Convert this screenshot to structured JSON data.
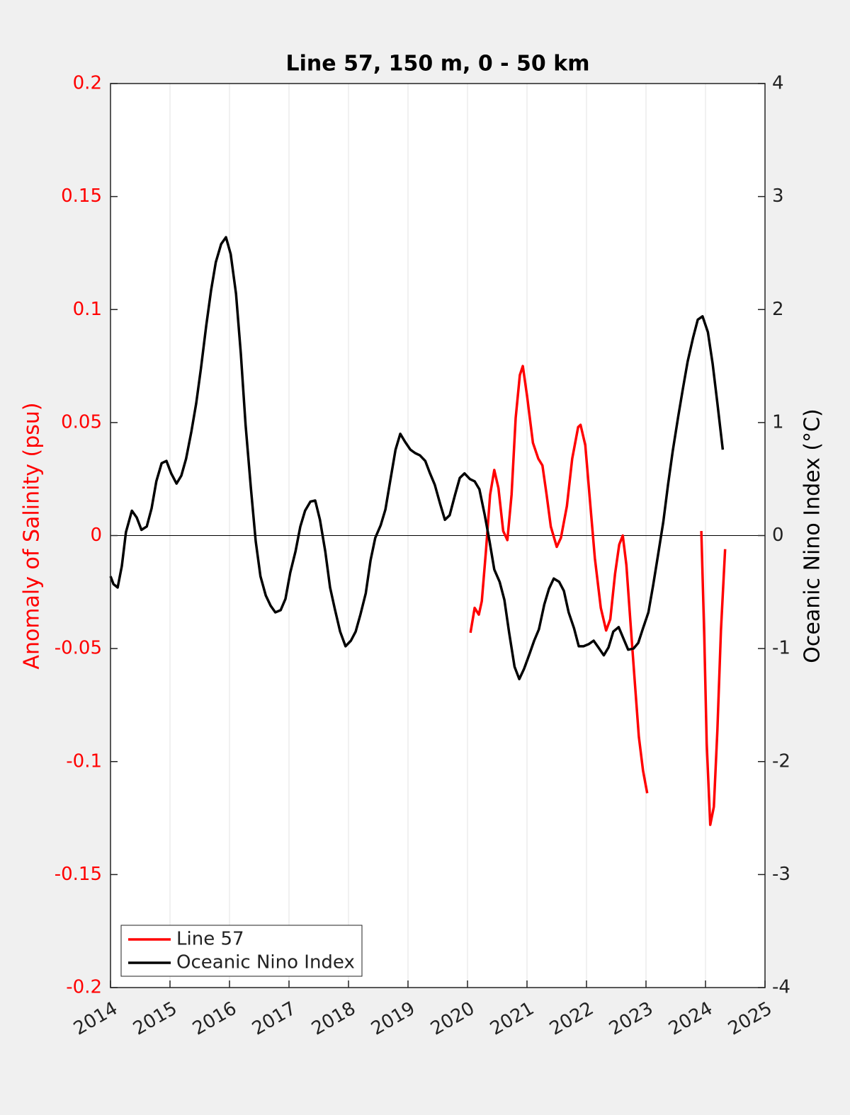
{
  "chart_data": {
    "type": "line",
    "title": "Line 57, 150 m, 0 - 50 km",
    "ylabel": "Anomaly of Salinity (psu)",
    "y2label": "Oceanic Nino Index (°C)",
    "xlim": [
      2014,
      2025
    ],
    "xticks": [
      2014,
      2015,
      2016,
      2017,
      2018,
      2019,
      2020,
      2021,
      2022,
      2023,
      2024,
      2025
    ],
    "ylim": [
      -0.2,
      0.2
    ],
    "yticks": [
      -0.2,
      -0.15,
      -0.1,
      -0.05,
      0,
      0.05,
      0.1,
      0.15,
      0.2
    ],
    "y2lim": [
      -4,
      4
    ],
    "y2ticks": [
      -4,
      -3,
      -2,
      -1,
      0,
      1,
      2,
      3,
      4
    ],
    "xgrid": true,
    "reference_line": 0,
    "legend": "lower left",
    "ycolor": "#ff0000",
    "series": [
      {
        "name": "Line 57",
        "color": "#ff0000",
        "axis": "y",
        "x": [
          2020.05,
          2020.12,
          2020.19,
          2020.24,
          2020.31,
          2020.38,
          2020.45,
          2020.52,
          2020.6,
          2020.67,
          2020.74,
          2020.81,
          2020.88,
          2020.93,
          2021.0,
          2021.1,
          2021.19,
          2021.26,
          2021.33,
          2021.4,
          2021.5,
          2021.57,
          2021.67,
          2021.76,
          2021.86,
          2021.9,
          2021.98,
          2022.05,
          2022.14,
          2022.24,
          2022.33,
          2022.4,
          2022.48,
          2022.55,
          2022.61,
          2022.67,
          2022.74,
          2022.81,
          2022.88,
          2022.95,
          2023.02,
          2023.5,
          2023.93,
          2023.98,
          2024.02,
          2024.08,
          2024.14,
          2024.2,
          2024.26,
          2024.33
        ],
        "values": [
          -0.043,
          -0.032,
          -0.035,
          -0.029,
          -0.007,
          0.018,
          0.029,
          0.021,
          0.002,
          -0.002,
          0.018,
          0.052,
          0.071,
          0.075,
          0.062,
          0.041,
          0.034,
          0.031,
          0.018,
          0.004,
          -0.005,
          -0.001,
          0.013,
          0.034,
          0.048,
          0.049,
          0.04,
          0.018,
          -0.01,
          -0.032,
          -0.042,
          -0.037,
          -0.017,
          -0.004,
          0.0,
          -0.013,
          -0.039,
          -0.064,
          -0.089,
          -0.104,
          -0.114,
          null,
          0.002,
          -0.045,
          -0.092,
          -0.128,
          -0.12,
          -0.086,
          -0.042,
          -0.006
        ]
      },
      {
        "name": "Oceanic Nino Index",
        "color": "#000000",
        "axis": "y2",
        "x": [
          2014.0,
          2014.05,
          2014.12,
          2014.19,
          2014.26,
          2014.36,
          2014.44,
          2014.52,
          2014.61,
          2014.69,
          2014.77,
          2014.86,
          2014.94,
          2015.02,
          2015.11,
          2015.19,
          2015.27,
          2015.36,
          2015.44,
          2015.52,
          2015.61,
          2015.69,
          2015.77,
          2015.86,
          2015.94,
          2016.02,
          2016.11,
          2016.19,
          2016.27,
          2016.36,
          2016.44,
          2016.52,
          2016.61,
          2016.69,
          2016.77,
          2016.86,
          2016.94,
          2017.02,
          2017.11,
          2017.19,
          2017.27,
          2017.36,
          2017.44,
          2017.52,
          2017.61,
          2017.69,
          2017.77,
          2017.86,
          2017.95,
          2018.04,
          2018.12,
          2018.2,
          2018.29,
          2018.37,
          2018.45,
          2018.54,
          2018.62,
          2018.7,
          2018.79,
          2018.87,
          2018.95,
          2019.04,
          2019.12,
          2019.2,
          2019.29,
          2019.37,
          2019.45,
          2019.54,
          2019.62,
          2019.7,
          2019.79,
          2019.87,
          2019.95,
          2020.04,
          2020.12,
          2020.2,
          2020.29,
          2020.37,
          2020.45,
          2020.54,
          2020.62,
          2020.7,
          2020.79,
          2020.87,
          2020.95,
          2021.04,
          2021.12,
          2021.2,
          2021.29,
          2021.37,
          2021.45,
          2021.54,
          2021.62,
          2021.7,
          2021.79,
          2021.87,
          2021.95,
          2022.04,
          2022.12,
          2022.2,
          2022.29,
          2022.37,
          2022.45,
          2022.54,
          2022.62,
          2022.7,
          2022.79,
          2022.87,
          2022.95,
          2023.04,
          2023.12,
          2023.2,
          2023.29,
          2023.37,
          2023.45,
          2023.54,
          2023.62,
          2023.7,
          2023.79,
          2023.87,
          2023.95,
          2024.04,
          2024.12,
          2024.2,
          2024.29
        ],
        "values": [
          -0.36,
          -0.43,
          -0.46,
          -0.27,
          0.03,
          0.22,
          0.16,
          0.05,
          0.08,
          0.24,
          0.48,
          0.64,
          0.66,
          0.55,
          0.46,
          0.53,
          0.68,
          0.92,
          1.17,
          1.48,
          1.86,
          2.17,
          2.42,
          2.58,
          2.64,
          2.49,
          2.14,
          1.61,
          0.98,
          0.42,
          -0.05,
          -0.36,
          -0.53,
          -0.62,
          -0.68,
          -0.66,
          -0.56,
          -0.33,
          -0.14,
          0.08,
          0.22,
          0.3,
          0.31,
          0.14,
          -0.14,
          -0.46,
          -0.65,
          -0.85,
          -0.98,
          -0.93,
          -0.85,
          -0.7,
          -0.51,
          -0.22,
          -0.02,
          0.09,
          0.23,
          0.48,
          0.76,
          0.9,
          0.83,
          0.76,
          0.73,
          0.71,
          0.66,
          0.55,
          0.45,
          0.28,
          0.14,
          0.18,
          0.36,
          0.51,
          0.55,
          0.5,
          0.48,
          0.41,
          0.18,
          -0.05,
          -0.3,
          -0.41,
          -0.57,
          -0.86,
          -1.16,
          -1.27,
          -1.18,
          -1.05,
          -0.93,
          -0.83,
          -0.61,
          -0.47,
          -0.38,
          -0.41,
          -0.49,
          -0.68,
          -0.82,
          -0.98,
          -0.98,
          -0.96,
          -0.93,
          -0.99,
          -1.06,
          -0.99,
          -0.85,
          -0.81,
          -0.91,
          -1.01,
          -1.0,
          -0.95,
          -0.82,
          -0.68,
          -0.44,
          -0.18,
          0.12,
          0.45,
          0.75,
          1.05,
          1.3,
          1.54,
          1.75,
          1.91,
          1.94,
          1.8,
          1.52,
          1.17,
          0.76
        ]
      }
    ]
  }
}
